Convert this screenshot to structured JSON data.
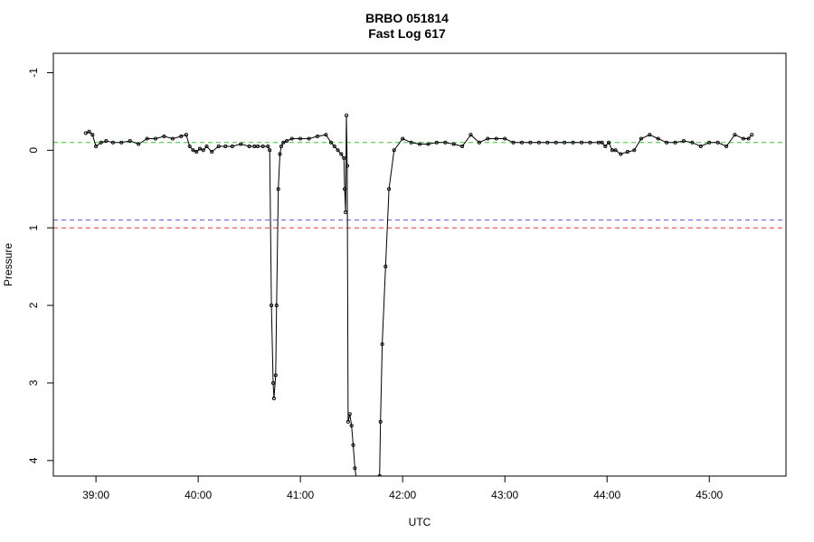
{
  "chart_data": {
    "type": "line",
    "title": "BRBO 051814",
    "subtitle": "Fast Log 617",
    "xlabel": "UTC",
    "ylabel": "Pressure",
    "xlim_seconds": [
      2315,
      2745
    ],
    "xticks": [
      {
        "value": 2340,
        "label": "39:00"
      },
      {
        "value": 2400,
        "label": "40:00"
      },
      {
        "value": 2460,
        "label": "41:00"
      },
      {
        "value": 2520,
        "label": "42:00"
      },
      {
        "value": 2580,
        "label": "43:00"
      },
      {
        "value": 2640,
        "label": "44:00"
      },
      {
        "value": 2700,
        "label": "45:00"
      }
    ],
    "ylim": [
      4.2,
      -1.25
    ],
    "y_reversed": true,
    "yticks": [
      {
        "value": -1,
        "label": "-1"
      },
      {
        "value": 0,
        "label": "0"
      },
      {
        "value": 1,
        "label": "1"
      },
      {
        "value": 2,
        "label": "2"
      },
      {
        "value": 3,
        "label": "3"
      },
      {
        "value": 4,
        "label": "4"
      }
    ],
    "grid": false,
    "reference_lines": [
      {
        "y": -0.1,
        "color": "#2ecc2e"
      },
      {
        "y": 0.9,
        "color": "#5555ee"
      },
      {
        "y": 1.0,
        "color": "#ee3333"
      }
    ],
    "series_color": "#000000",
    "series": [
      {
        "x": [
          2334,
          2336,
          2338,
          2340,
          2343,
          2346,
          2350,
          2355,
          2360,
          2365,
          2370,
          2375,
          2380,
          2385,
          2390,
          2393,
          2395,
          2397,
          2399,
          2401,
          2403,
          2405,
          2408,
          2412,
          2416,
          2420,
          2425,
          2430,
          2433,
          2435,
          2438,
          2441,
          2442,
          2443,
          2444,
          2444.5,
          2445.5,
          2446,
          2447,
          2448,
          2448.8,
          2450,
          2452,
          2455,
          2460,
          2465,
          2470,
          2475,
          2478,
          2480,
          2482,
          2484,
          2485.5,
          2486,
          2486.5,
          2487,
          2487.5,
          2488,
          2489,
          2490,
          2491,
          2492,
          2493,
          2494,
          2495,
          2496,
          2497,
          2498,
          2499,
          2500,
          2501,
          2502,
          2503,
          2504,
          2505,
          2506,
          2506.5,
          2507,
          2508,
          2510,
          2512,
          2515,
          2520,
          2525,
          2530,
          2535,
          2540,
          2545,
          2550,
          2555,
          2560,
          2565,
          2570,
          2575,
          2580,
          2585,
          2590,
          2595,
          2600,
          2605,
          2610,
          2615,
          2620,
          2625,
          2630,
          2635,
          2637,
          2639,
          2641,
          2643,
          2645,
          2648,
          2652,
          2656,
          2660,
          2665,
          2670,
          2675,
          2680,
          2685,
          2690,
          2695,
          2700,
          2705,
          2710,
          2715,
          2720,
          2723,
          2725
        ],
        "y": [
          -0.22,
          -0.24,
          -0.2,
          -0.05,
          -0.1,
          -0.12,
          -0.1,
          -0.1,
          -0.12,
          -0.08,
          -0.15,
          -0.15,
          -0.18,
          -0.15,
          -0.18,
          -0.2,
          -0.05,
          0.0,
          0.02,
          -0.02,
          0.0,
          -0.05,
          0.02,
          -0.05,
          -0.05,
          -0.05,
          -0.08,
          -0.05,
          -0.05,
          -0.05,
          -0.05,
          -0.05,
          0.0,
          2.0,
          3.0,
          3.2,
          2.9,
          2.0,
          0.5,
          0.05,
          -0.05,
          -0.1,
          -0.12,
          -0.15,
          -0.15,
          -0.15,
          -0.18,
          -0.2,
          -0.1,
          -0.05,
          0.0,
          0.05,
          0.1,
          0.5,
          0.8,
          -0.45,
          0.2,
          3.5,
          3.4,
          3.55,
          3.8,
          4.1,
          4.25,
          4.25,
          4.25,
          4.25,
          4.25,
          4.25,
          4.25,
          4.25,
          4.25,
          4.25,
          4.25,
          4.25,
          4.25,
          4.25,
          4.2,
          3.5,
          2.5,
          1.5,
          0.5,
          0.0,
          -0.15,
          -0.1,
          -0.08,
          -0.08,
          -0.1,
          -0.1,
          -0.08,
          -0.05,
          -0.2,
          -0.1,
          -0.15,
          -0.15,
          -0.15,
          -0.1,
          -0.1,
          -0.1,
          -0.1,
          -0.1,
          -0.1,
          -0.1,
          -0.1,
          -0.1,
          -0.1,
          -0.1,
          -0.1,
          -0.05,
          -0.1,
          0.0,
          0.0,
          0.05,
          0.02,
          0.0,
          -0.15,
          -0.2,
          -0.15,
          -0.1,
          -0.1,
          -0.12,
          -0.1,
          -0.05,
          -0.1,
          -0.1,
          -0.05,
          -0.2,
          -0.15,
          -0.15,
          -0.2
        ]
      }
    ]
  }
}
